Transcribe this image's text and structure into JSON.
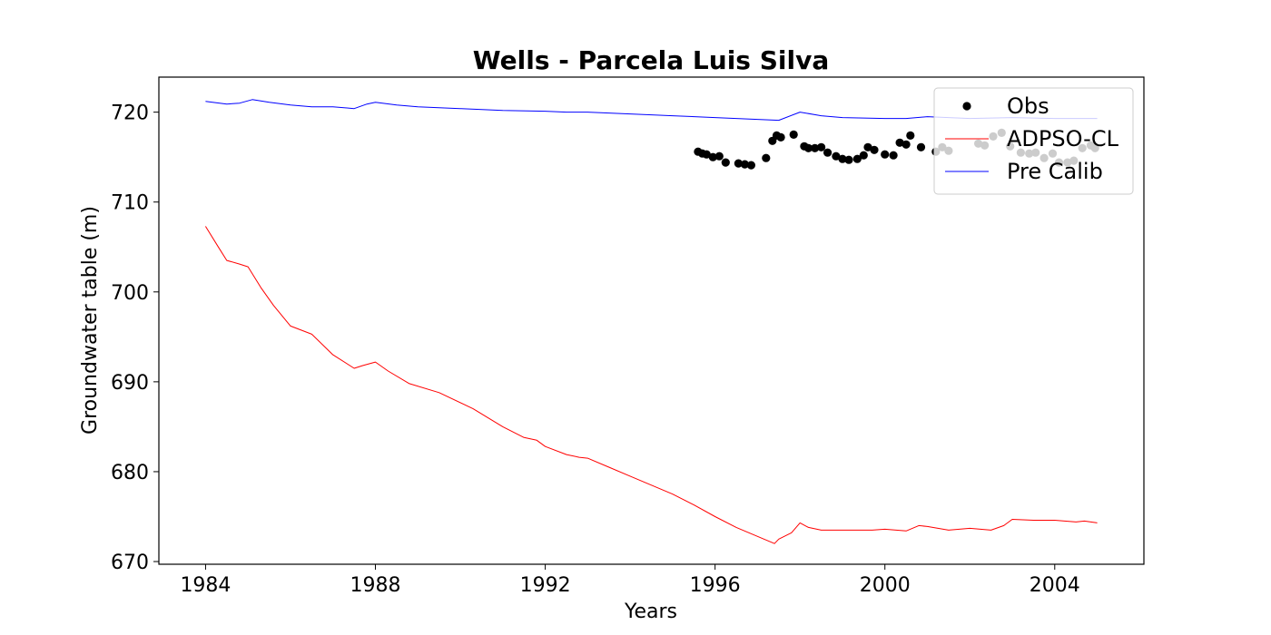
{
  "chart_data": {
    "type": "line",
    "title": "Wells - Parcela Luis Silva",
    "xlabel": "Years",
    "ylabel": "Groundwater table (m)",
    "xlim": [
      1982.9,
      2006.1
    ],
    "ylim": [
      669.7,
      723.9
    ],
    "xticks": [
      1984,
      1988,
      1992,
      1996,
      2000,
      2004
    ],
    "xtick_labels": [
      "1984",
      "1988",
      "1992",
      "1996",
      "2000",
      "2004"
    ],
    "yticks": [
      670,
      680,
      690,
      700,
      710,
      720
    ],
    "ytick_labels": [
      "670",
      "680",
      "690",
      "700",
      "710",
      "720"
    ],
    "grid": false,
    "legend_position": "top-right",
    "legend_opacity": 0.8,
    "series": [
      {
        "name": "Obs",
        "kind": "scatter",
        "color": "#000000",
        "x": [
          1995.6,
          1995.7,
          1995.8,
          1995.95,
          1996.1,
          1996.25,
          1996.55,
          1996.7,
          1996.85,
          1997.2,
          1997.35,
          1997.45,
          1997.55,
          1997.85,
          1998.1,
          1998.2,
          1998.35,
          1998.5,
          1998.65,
          1998.85,
          1999.0,
          1999.15,
          1999.35,
          1999.5,
          1999.6,
          1999.75,
          2000.0,
          2000.2,
          2000.35,
          2000.5,
          2000.6,
          2000.85,
          2001.2,
          2001.35,
          2001.5,
          2002.2,
          2002.35,
          2002.55,
          2002.75,
          2002.95,
          2003.2,
          2003.4,
          2003.55,
          2003.75,
          2003.95,
          2004.1,
          2004.3,
          2004.45,
          2004.65,
          2004.85,
          2004.95
        ],
        "y": [
          715.6,
          715.4,
          715.3,
          715.0,
          715.1,
          714.4,
          714.3,
          714.2,
          714.1,
          714.9,
          716.8,
          717.4,
          717.2,
          717.5,
          716.2,
          716.0,
          716.0,
          716.1,
          715.5,
          715.1,
          714.8,
          714.7,
          714.8,
          715.2,
          716.1,
          715.8,
          715.3,
          715.2,
          716.6,
          716.4,
          717.4,
          716.1,
          715.6,
          716.1,
          715.7,
          716.5,
          716.3,
          717.3,
          717.7,
          716.2,
          715.5,
          715.4,
          715.5,
          714.9,
          715.4,
          714.4,
          714.4,
          714.6,
          716.0,
          716.3,
          716.0
        ]
      },
      {
        "name": "ADPSO-CL",
        "kind": "line",
        "color": "#ff0000",
        "x": [
          1984.0,
          1984.3,
          1984.5,
          1984.8,
          1985.0,
          1985.3,
          1985.6,
          1986.0,
          1986.5,
          1987.0,
          1987.5,
          1987.7,
          1988.0,
          1988.3,
          1988.8,
          1989.5,
          1990.3,
          1991.0,
          1991.5,
          1991.8,
          1992.0,
          1992.5,
          1992.8,
          1993.0,
          1993.5,
          1994.0,
          1994.5,
          1995.0,
          1995.5,
          1996.0,
          1996.5,
          1997.0,
          1997.4,
          1997.5,
          1997.8,
          1998.0,
          1998.2,
          1998.5,
          1999.0,
          1999.7,
          2000.0,
          2000.5,
          2000.8,
          2001.0,
          2001.5,
          2002.0,
          2002.5,
          2002.8,
          2003.0,
          2003.5,
          2004.0,
          2004.5,
          2004.7,
          2005.0
        ],
        "y": [
          707.3,
          705.0,
          703.5,
          703.1,
          702.8,
          700.5,
          698.5,
          696.2,
          695.3,
          693.0,
          691.5,
          691.8,
          692.2,
          691.2,
          689.8,
          688.8,
          687.0,
          685.0,
          683.8,
          683.5,
          682.8,
          681.9,
          681.6,
          681.5,
          680.5,
          679.5,
          678.5,
          677.5,
          676.3,
          675.0,
          673.8,
          672.8,
          672.0,
          672.5,
          673.2,
          674.3,
          673.8,
          673.5,
          673.5,
          673.5,
          673.6,
          673.4,
          674.0,
          673.9,
          673.5,
          673.7,
          673.5,
          674.0,
          674.7,
          674.6,
          674.6,
          674.4,
          674.5,
          674.3
        ]
      },
      {
        "name": "Pre Calib",
        "kind": "line",
        "color": "#0000ff",
        "x": [
          1984.0,
          1984.5,
          1984.8,
          1985.1,
          1985.5,
          1986.0,
          1986.5,
          1987.0,
          1987.5,
          1987.8,
          1988.0,
          1988.5,
          1989.0,
          1990.0,
          1991.0,
          1992.0,
          1992.5,
          1993.0,
          1994.0,
          1995.0,
          1996.0,
          1997.0,
          1997.5,
          1998.0,
          1998.5,
          1999.0,
          2000.0,
          2000.5,
          2001.0,
          2001.5,
          2002.0,
          2003.0,
          2004.0,
          2005.0
        ],
        "y": [
          721.2,
          720.9,
          721.0,
          721.4,
          721.1,
          720.8,
          720.6,
          720.6,
          720.4,
          720.9,
          721.1,
          720.8,
          720.6,
          720.4,
          720.2,
          720.1,
          720.0,
          720.0,
          719.8,
          719.6,
          719.4,
          719.2,
          719.1,
          720.0,
          719.6,
          719.4,
          719.3,
          719.3,
          719.5,
          719.4,
          719.3,
          719.4,
          719.3,
          719.3
        ]
      }
    ]
  }
}
